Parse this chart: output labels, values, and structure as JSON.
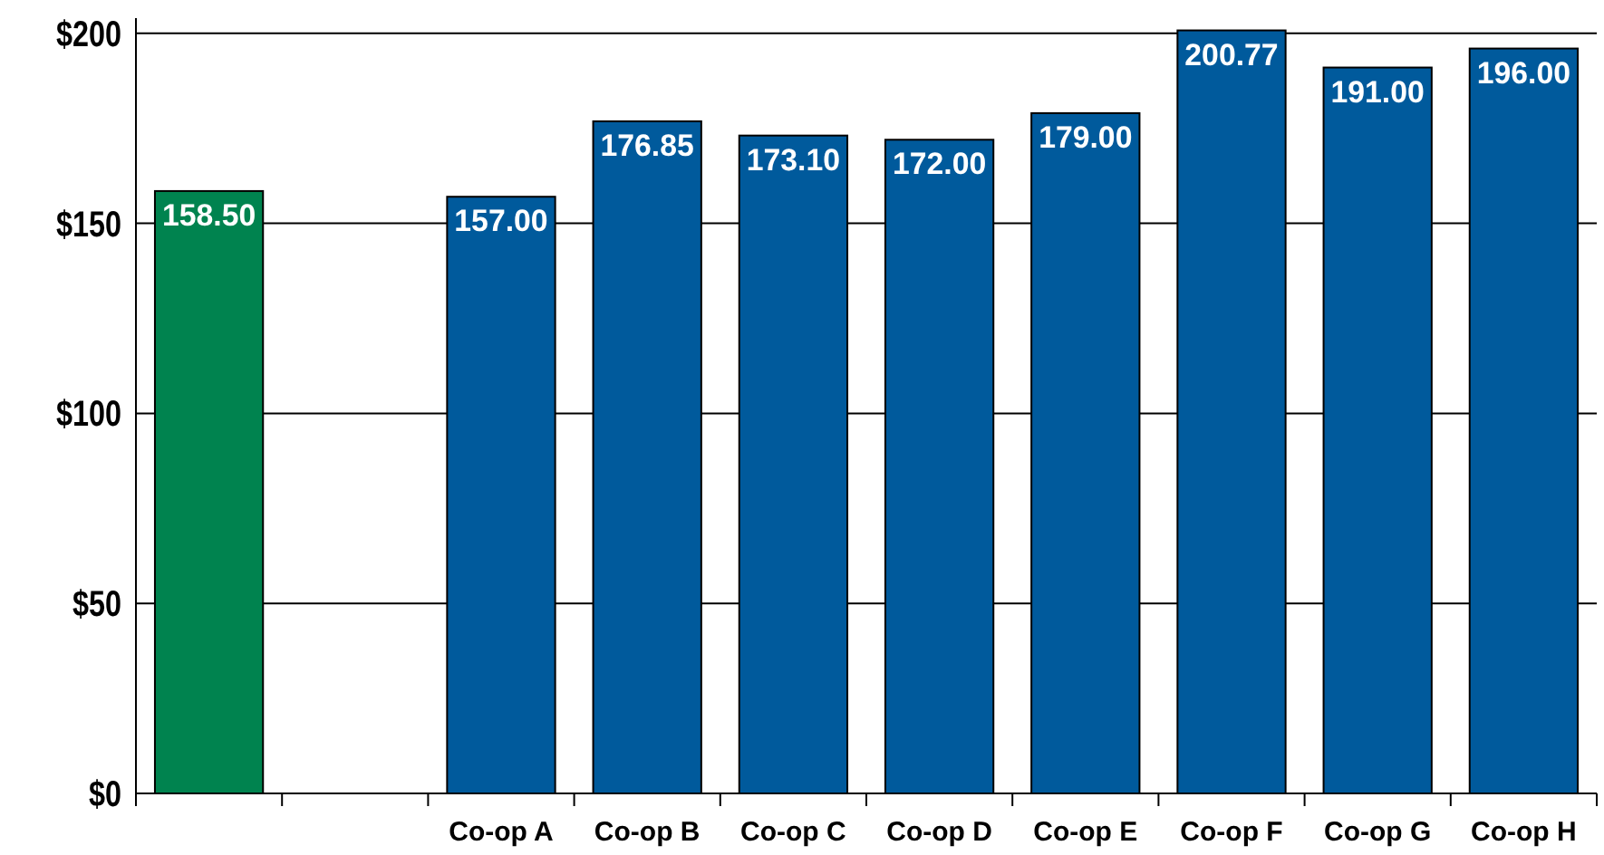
{
  "chart_data": {
    "type": "bar",
    "categories": [
      null,
      null,
      "Co-op A",
      "Co-op B",
      "Co-op C",
      "Co-op D",
      "Co-op E",
      "Co-op F",
      "Co-op G",
      "Co-op H"
    ],
    "values": [
      158.5,
      null,
      157,
      176.85,
      173.1,
      172,
      179,
      200.77,
      191,
      196
    ],
    "colors": [
      "#00834f",
      null,
      "#005a9c",
      "#005a9c",
      "#005a9c",
      "#005a9c",
      "#005a9c",
      "#005a9c",
      "#005a9c",
      "#005a9c"
    ],
    "value_labels": [
      "158.50",
      null,
      "157.00",
      "176.85",
      "173.10",
      "172.00",
      "179.00",
      "200.77",
      "191.00",
      "196.00"
    ],
    "ylim": [
      0,
      204
    ],
    "yticks": [
      {
        "value": 0,
        "label": "$0"
      },
      {
        "value": 50,
        "label": "$50"
      },
      {
        "value": 100,
        "label": "$100"
      },
      {
        "value": 150,
        "label": "$150"
      },
      {
        "value": 200,
        "label": "$200"
      }
    ],
    "grid": "y"
  }
}
